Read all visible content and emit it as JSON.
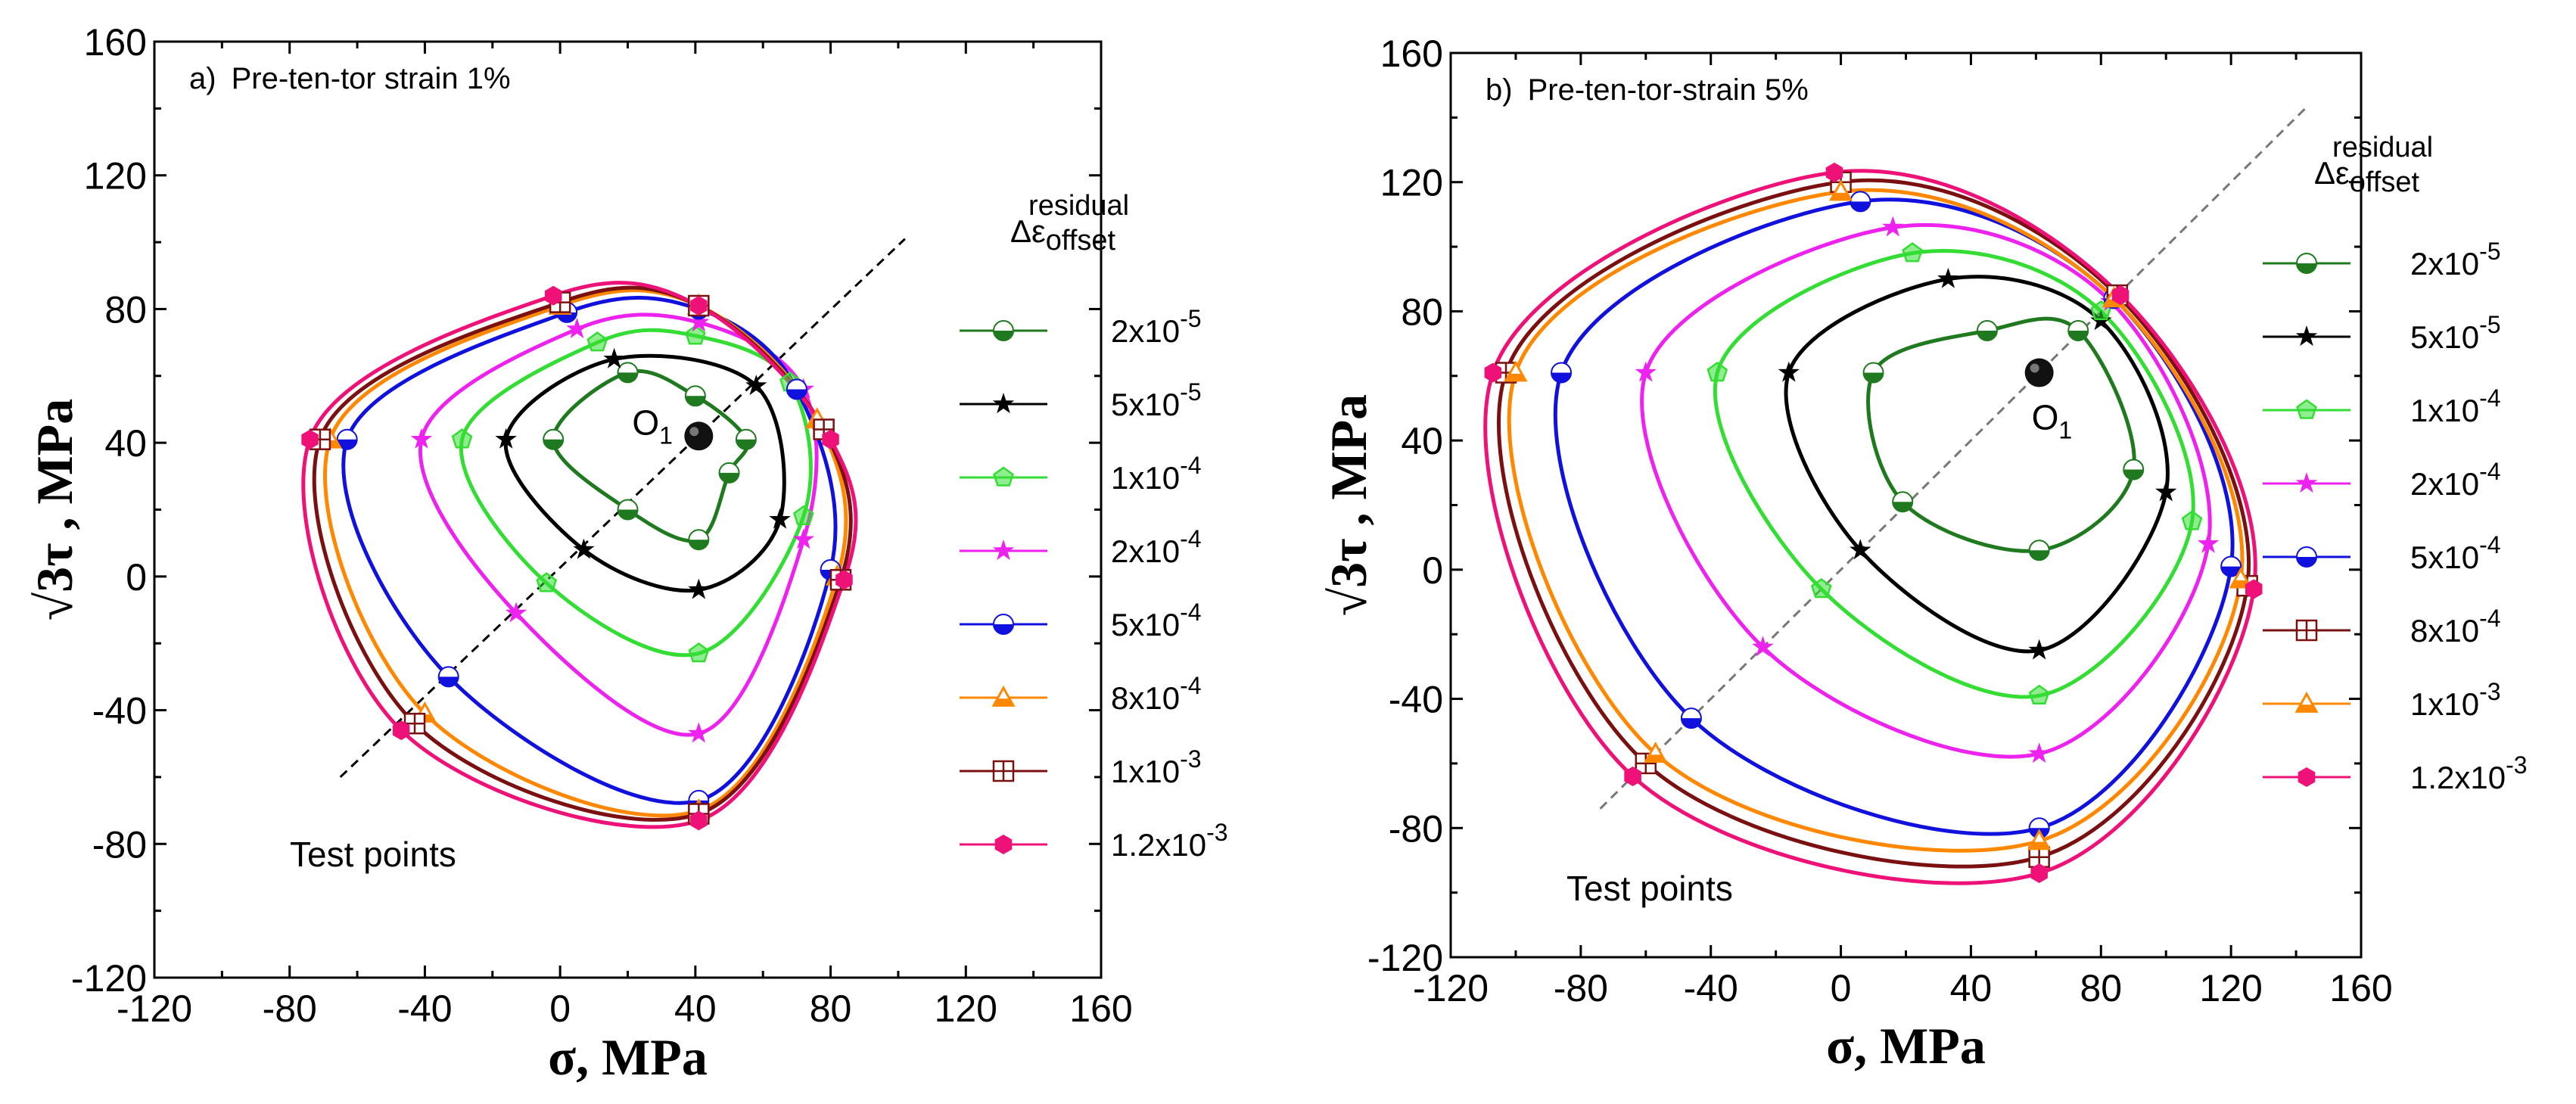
{
  "chart_data": [
    {
      "type": "line",
      "panel_label": "a)",
      "title": "Pre-ten-tor strain 1%",
      "xlabel": "σ,  MPa",
      "ylabel": "√3τ , MPa",
      "xlim": [
        -120,
        160
      ],
      "ylim": [
        -120,
        160
      ],
      "xticks": [
        "-120",
        "-80",
        "-40",
        "0",
        "40",
        "80",
        "120",
        "160"
      ],
      "yticks": [
        "-120",
        "-80",
        "-40",
        "0",
        "40",
        "80",
        "120",
        "160"
      ],
      "grid": false,
      "legend_position": "right",
      "legend_title": "Δε offset residual",
      "annotation_point": {
        "label": "O",
        "subscript": "1",
        "x": 41,
        "y": 42
      },
      "test_points_label": "Test points",
      "diagonal": {
        "x": [
          -65,
          102
        ],
        "y": [
          -60,
          101
        ]
      },
      "series": [
        {
          "name": "2x10",
          "exp": "-5",
          "color": "#1f7a1f",
          "marker": "circle-half",
          "points": [
            [
              -2,
              41
            ],
            [
              20,
              61
            ],
            [
              40,
              54
            ],
            [
              55,
              41
            ],
            [
              50,
              31
            ],
            [
              41,
              11
            ],
            [
              20,
              20
            ],
            [
              -2,
              41
            ]
          ]
        },
        {
          "name": "5x10",
          "exp": "-5",
          "color": "#000000",
          "marker": "star",
          "points": [
            [
              -16,
              41
            ],
            [
              16,
              65
            ],
            [
              58,
              57
            ],
            [
              65,
              17
            ],
            [
              41,
              -4
            ],
            [
              7,
              8
            ],
            [
              -16,
              41
            ]
          ]
        },
        {
          "name": "1x10",
          "exp": "-4",
          "color": "#33dd33",
          "marker": "pentagon",
          "points": [
            [
              -29,
              41
            ],
            [
              11,
              70
            ],
            [
              40,
              72
            ],
            [
              68,
              58
            ],
            [
              72,
              18
            ],
            [
              41,
              -23
            ],
            [
              -4,
              -2
            ],
            [
              -29,
              41
            ]
          ]
        },
        {
          "name": "2x10",
          "exp": "-4",
          "color": "#ee22ee",
          "marker": "star",
          "points": [
            [
              -41,
              41
            ],
            [
              5,
              74
            ],
            [
              41,
              76
            ],
            [
              72,
              56
            ],
            [
              72,
              11
            ],
            [
              41,
              -47
            ],
            [
              -13,
              -11
            ],
            [
              -41,
              41
            ]
          ]
        },
        {
          "name": "5x10",
          "exp": "-4",
          "color": "#1111dd",
          "marker": "circle-half",
          "points": [
            [
              -63,
              41
            ],
            [
              2,
              79
            ],
            [
              41,
              80
            ],
            [
              70,
              56
            ],
            [
              80,
              2
            ],
            [
              41,
              -67
            ],
            [
              -33,
              -30
            ],
            [
              -63,
              41
            ]
          ]
        },
        {
          "name": "8x10",
          "exp": "-4",
          "color": "#ff8800",
          "marker": "triangle",
          "points": [
            [
              -68,
              41
            ],
            [
              0,
              81
            ],
            [
              41,
              81
            ],
            [
              76,
              47
            ],
            [
              82,
              0
            ],
            [
              41,
              -70
            ],
            [
              -40,
              -41
            ],
            [
              -68,
              41
            ]
          ]
        },
        {
          "name": "1x10",
          "exp": "-3",
          "color": "#7a1010",
          "marker": "square-cross",
          "points": [
            [
              -71,
              41
            ],
            [
              0,
              82
            ],
            [
              41,
              81
            ],
            [
              78,
              44
            ],
            [
              83,
              -1
            ],
            [
              41,
              -71
            ],
            [
              -43,
              -44
            ],
            [
              -71,
              41
            ]
          ]
        },
        {
          "name": "1.2x10",
          "exp": "-3",
          "color": "#ee1177",
          "marker": "hexagon",
          "points": [
            [
              -74,
              41
            ],
            [
              -2,
              84
            ],
            [
              41,
              81
            ],
            [
              80,
              41
            ],
            [
              84,
              -1
            ],
            [
              41,
              -73
            ],
            [
              -47,
              -46
            ],
            [
              -74,
              41
            ]
          ]
        }
      ]
    },
    {
      "type": "line",
      "panel_label": "b)",
      "title": "Pre-ten-tor-strain 5%",
      "xlabel": "σ,  MPa",
      "ylabel": "√3τ , MPa",
      "xlim": [
        -120,
        160
      ],
      "ylim": [
        -120,
        160
      ],
      "xticks": [
        "-120",
        "-80",
        "-40",
        "0",
        "40",
        "80",
        "120",
        "160"
      ],
      "yticks": [
        "-120",
        "-80",
        "-40",
        "0",
        "40",
        "80",
        "120",
        "160"
      ],
      "grid": false,
      "legend_position": "right",
      "legend_title": "Δε offset residual",
      "annotation_point": {
        "label": "O",
        "subscript": "1",
        "x": 61,
        "y": 61
      },
      "test_points_label": "Test points",
      "diagonal": {
        "x": [
          -74,
          143
        ],
        "y": [
          -74,
          143
        ]
      },
      "series": [
        {
          "name": "2x10",
          "exp": "-5",
          "color": "#1f7a1f",
          "marker": "circle-half",
          "points": [
            [
              10,
              61
            ],
            [
              45,
              74
            ],
            [
              73,
              74
            ],
            [
              90,
              31
            ],
            [
              61,
              6
            ],
            [
              19,
              21
            ],
            [
              10,
              61
            ]
          ]
        },
        {
          "name": "5x10",
          "exp": "-5",
          "color": "#000000",
          "marker": "star",
          "points": [
            [
              -16,
              61
            ],
            [
              33,
              90
            ],
            [
              80,
              77
            ],
            [
              100,
              24
            ],
            [
              61,
              -25
            ],
            [
              6,
              6
            ],
            [
              -16,
              61
            ]
          ]
        },
        {
          "name": "1x10",
          "exp": "-4",
          "color": "#33dd33",
          "marker": "pentagon",
          "points": [
            [
              -38,
              61
            ],
            [
              22,
              98
            ],
            [
              80,
              80
            ],
            [
              108,
              15
            ],
            [
              61,
              -39
            ],
            [
              -6,
              -6
            ],
            [
              -38,
              61
            ]
          ]
        },
        {
          "name": "2x10",
          "exp": "-4",
          "color": "#ee22ee",
          "marker": "star",
          "points": [
            [
              -60,
              61
            ],
            [
              16,
              106
            ],
            [
              83,
              83
            ],
            [
              113,
              8
            ],
            [
              61,
              -57
            ],
            [
              -24,
              -24
            ],
            [
              -60,
              61
            ]
          ]
        },
        {
          "name": "5x10",
          "exp": "-4",
          "color": "#1111dd",
          "marker": "circle-half",
          "points": [
            [
              -86,
              61
            ],
            [
              6,
              114
            ],
            [
              84,
              84
            ],
            [
              120,
              1
            ],
            [
              61,
              -80
            ],
            [
              -46,
              -46
            ],
            [
              -86,
              61
            ]
          ]
        },
        {
          "name": "8x10",
          "exp": "-4",
          "color": "#7a1010",
          "marker": "square-cross",
          "points": [
            [
              -103,
              61
            ],
            [
              0,
              120
            ],
            [
              85,
              85
            ],
            [
              125,
              -5
            ],
            [
              61,
              -89
            ],
            [
              -60,
              -60
            ],
            [
              -103,
              61
            ]
          ]
        },
        {
          "name": "1x10",
          "exp": "-3",
          "color": "#ff8800",
          "marker": "triangle",
          "points": [
            [
              -100,
              61
            ],
            [
              0,
              117
            ],
            [
              84,
              84
            ],
            [
              123,
              -3
            ],
            [
              61,
              -84
            ],
            [
              -57,
              -57
            ],
            [
              -100,
              61
            ]
          ]
        },
        {
          "name": "1.2x10",
          "exp": "-3",
          "color": "#ee1177",
          "marker": "hexagon",
          "points": [
            [
              -107,
              61
            ],
            [
              -2,
              123
            ],
            [
              86,
              85
            ],
            [
              127,
              -6
            ],
            [
              61,
              -94
            ],
            [
              -64,
              -64
            ],
            [
              -107,
              61
            ]
          ]
        }
      ]
    }
  ]
}
